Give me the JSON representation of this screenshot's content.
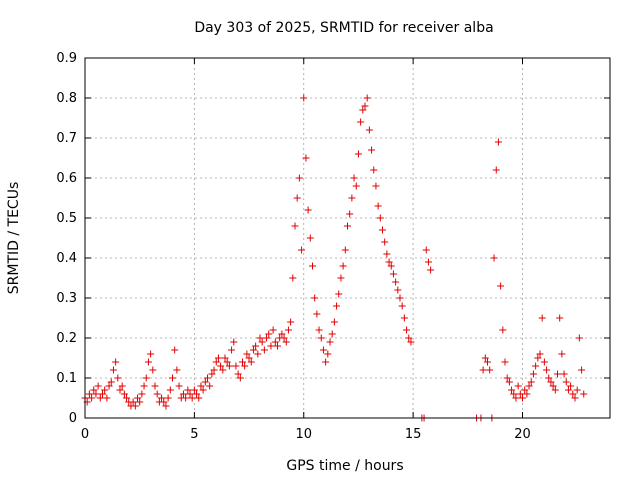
{
  "chart_data": {
    "type": "scatter",
    "title": "Day 303 of 2025, SRMTID for receiver alba",
    "xlabel": "GPS time / hours",
    "ylabel": "SRMTID / TECUs",
    "xlim": [
      0,
      24
    ],
    "ylim": [
      0,
      0.9
    ],
    "x_ticks": [
      {
        "value": 0,
        "label": "0"
      },
      {
        "value": 5,
        "label": "5"
      },
      {
        "value": 10,
        "label": "10"
      },
      {
        "value": 15,
        "label": "15"
      },
      {
        "value": 20,
        "label": "20"
      }
    ],
    "y_ticks": [
      {
        "value": 0,
        "label": "0"
      },
      {
        "value": 0.1,
        "label": "0.1"
      },
      {
        "value": 0.2,
        "label": "0.2"
      },
      {
        "value": 0.3,
        "label": "0.3"
      },
      {
        "value": 0.4,
        "label": "0.4"
      },
      {
        "value": 0.5,
        "label": "0.5"
      },
      {
        "value": 0.6,
        "label": "0.6"
      },
      {
        "value": 0.7,
        "label": "0.7"
      },
      {
        "value": 0.8,
        "label": "0.8"
      },
      {
        "value": 0.9,
        "label": "0.9"
      }
    ],
    "grid": true,
    "marker": "+",
    "color": "#e00000",
    "series": [
      {
        "name": "SRMTID",
        "points": [
          [
            0.0,
            0.05
          ],
          [
            0.1,
            0.04
          ],
          [
            0.2,
            0.06
          ],
          [
            0.3,
            0.05
          ],
          [
            0.4,
            0.07
          ],
          [
            0.5,
            0.06
          ],
          [
            0.6,
            0.08
          ],
          [
            0.7,
            0.05
          ],
          [
            0.8,
            0.06
          ],
          [
            0.9,
            0.07
          ],
          [
            1.0,
            0.05
          ],
          [
            1.1,
            0.08
          ],
          [
            1.2,
            0.09
          ],
          [
            1.3,
            0.12
          ],
          [
            1.4,
            0.14
          ],
          [
            1.5,
            0.1
          ],
          [
            1.6,
            0.07
          ],
          [
            1.7,
            0.08
          ],
          [
            1.8,
            0.06
          ],
          [
            1.9,
            0.05
          ],
          [
            2.0,
            0.04
          ],
          [
            2.1,
            0.03
          ],
          [
            2.2,
            0.04
          ],
          [
            2.3,
            0.03
          ],
          [
            2.4,
            0.05
          ],
          [
            2.5,
            0.04
          ],
          [
            2.6,
            0.06
          ],
          [
            2.7,
            0.08
          ],
          [
            2.8,
            0.1
          ],
          [
            2.9,
            0.14
          ],
          [
            3.0,
            0.16
          ],
          [
            3.1,
            0.12
          ],
          [
            3.2,
            0.08
          ],
          [
            3.3,
            0.06
          ],
          [
            3.4,
            0.04
          ],
          [
            3.5,
            0.05
          ],
          [
            3.6,
            0.04
          ],
          [
            3.7,
            0.03
          ],
          [
            3.8,
            0.05
          ],
          [
            3.9,
            0.07
          ],
          [
            4.0,
            0.1
          ],
          [
            4.1,
            0.17
          ],
          [
            4.2,
            0.12
          ],
          [
            4.3,
            0.08
          ],
          [
            4.4,
            0.05
          ],
          [
            4.5,
            0.06
          ],
          [
            4.6,
            0.05
          ],
          [
            4.7,
            0.07
          ],
          [
            4.8,
            0.06
          ],
          [
            4.9,
            0.05
          ],
          [
            5.0,
            0.07
          ],
          [
            5.1,
            0.06
          ],
          [
            5.2,
            0.05
          ],
          [
            5.3,
            0.08
          ],
          [
            5.4,
            0.07
          ],
          [
            5.5,
            0.09
          ],
          [
            5.6,
            0.1
          ],
          [
            5.7,
            0.08
          ],
          [
            5.8,
            0.11
          ],
          [
            5.9,
            0.12
          ],
          [
            6.0,
            0.14
          ],
          [
            6.1,
            0.15
          ],
          [
            6.2,
            0.13
          ],
          [
            6.3,
            0.12
          ],
          [
            6.4,
            0.15
          ],
          [
            6.5,
            0.14
          ],
          [
            6.6,
            0.13
          ],
          [
            6.7,
            0.17
          ],
          [
            6.8,
            0.19
          ],
          [
            6.9,
            0.13
          ],
          [
            7.0,
            0.11
          ],
          [
            7.1,
            0.1
          ],
          [
            7.2,
            0.14
          ],
          [
            7.3,
            0.13
          ],
          [
            7.4,
            0.16
          ],
          [
            7.5,
            0.15
          ],
          [
            7.6,
            0.14
          ],
          [
            7.7,
            0.17
          ],
          [
            7.8,
            0.18
          ],
          [
            7.9,
            0.16
          ],
          [
            8.0,
            0.2
          ],
          [
            8.1,
            0.19
          ],
          [
            8.2,
            0.17
          ],
          [
            8.3,
            0.2
          ],
          [
            8.4,
            0.21
          ],
          [
            8.5,
            0.18
          ],
          [
            8.6,
            0.22
          ],
          [
            8.7,
            0.19
          ],
          [
            8.8,
            0.18
          ],
          [
            8.9,
            0.2
          ],
          [
            9.0,
            0.21
          ],
          [
            9.1,
            0.2
          ],
          [
            9.2,
            0.19
          ],
          [
            9.3,
            0.22
          ],
          [
            9.4,
            0.24
          ],
          [
            9.5,
            0.35
          ],
          [
            9.6,
            0.48
          ],
          [
            9.7,
            0.55
          ],
          [
            9.8,
            0.6
          ],
          [
            9.9,
            0.42
          ],
          [
            10.0,
            0.8
          ],
          [
            10.1,
            0.65
          ],
          [
            10.2,
            0.52
          ],
          [
            10.3,
            0.45
          ],
          [
            10.4,
            0.38
          ],
          [
            10.5,
            0.3
          ],
          [
            10.6,
            0.26
          ],
          [
            10.7,
            0.22
          ],
          [
            10.8,
            0.2
          ],
          [
            10.9,
            0.17
          ],
          [
            11.0,
            0.14
          ],
          [
            11.1,
            0.16
          ],
          [
            11.2,
            0.19
          ],
          [
            11.3,
            0.21
          ],
          [
            11.4,
            0.24
          ],
          [
            11.5,
            0.28
          ],
          [
            11.6,
            0.31
          ],
          [
            11.7,
            0.35
          ],
          [
            11.8,
            0.38
          ],
          [
            11.9,
            0.42
          ],
          [
            12.0,
            0.48
          ],
          [
            12.1,
            0.51
          ],
          [
            12.2,
            0.55
          ],
          [
            12.3,
            0.6
          ],
          [
            12.4,
            0.58
          ],
          [
            12.5,
            0.66
          ],
          [
            12.6,
            0.74
          ],
          [
            12.7,
            0.77
          ],
          [
            12.8,
            0.78
          ],
          [
            12.9,
            0.8
          ],
          [
            13.0,
            0.72
          ],
          [
            13.1,
            0.67
          ],
          [
            13.2,
            0.62
          ],
          [
            13.3,
            0.58
          ],
          [
            13.4,
            0.53
          ],
          [
            13.5,
            0.5
          ],
          [
            13.6,
            0.47
          ],
          [
            13.7,
            0.44
          ],
          [
            13.8,
            0.41
          ],
          [
            13.9,
            0.39
          ],
          [
            14.0,
            0.38
          ],
          [
            14.1,
            0.36
          ],
          [
            14.2,
            0.34
          ],
          [
            14.3,
            0.32
          ],
          [
            14.4,
            0.3
          ],
          [
            14.5,
            0.28
          ],
          [
            14.6,
            0.25
          ],
          [
            14.7,
            0.22
          ],
          [
            14.8,
            0.2
          ],
          [
            14.9,
            0.19
          ],
          [
            15.4,
            0.0
          ],
          [
            15.5,
            0.0
          ],
          [
            15.6,
            0.42
          ],
          [
            15.7,
            0.39
          ],
          [
            15.8,
            0.37
          ],
          [
            17.9,
            0.0
          ],
          [
            18.1,
            0.0
          ],
          [
            18.2,
            0.12
          ],
          [
            18.3,
            0.15
          ],
          [
            18.4,
            0.14
          ],
          [
            18.5,
            0.12
          ],
          [
            18.6,
            0.0
          ],
          [
            18.7,
            0.4
          ],
          [
            18.8,
            0.62
          ],
          [
            18.9,
            0.69
          ],
          [
            19.0,
            0.33
          ],
          [
            19.1,
            0.22
          ],
          [
            19.2,
            0.14
          ],
          [
            19.3,
            0.1
          ],
          [
            19.4,
            0.09
          ],
          [
            19.5,
            0.07
          ],
          [
            19.6,
            0.06
          ],
          [
            19.7,
            0.05
          ],
          [
            19.8,
            0.08
          ],
          [
            19.9,
            0.06
          ],
          [
            20.0,
            0.05
          ],
          [
            20.1,
            0.07
          ],
          [
            20.2,
            0.06
          ],
          [
            20.3,
            0.08
          ],
          [
            20.4,
            0.09
          ],
          [
            20.5,
            0.11
          ],
          [
            20.6,
            0.13
          ],
          [
            20.7,
            0.15
          ],
          [
            20.8,
            0.16
          ],
          [
            20.9,
            0.25
          ],
          [
            21.0,
            0.14
          ],
          [
            21.1,
            0.12
          ],
          [
            21.2,
            0.1
          ],
          [
            21.3,
            0.09
          ],
          [
            21.4,
            0.08
          ],
          [
            21.5,
            0.07
          ],
          [
            21.6,
            0.11
          ],
          [
            21.7,
            0.25
          ],
          [
            21.8,
            0.16
          ],
          [
            21.9,
            0.11
          ],
          [
            22.0,
            0.09
          ],
          [
            22.1,
            0.07
          ],
          [
            22.2,
            0.08
          ],
          [
            22.3,
            0.06
          ],
          [
            22.4,
            0.05
          ],
          [
            22.5,
            0.07
          ],
          [
            22.6,
            0.2
          ],
          [
            22.7,
            0.12
          ],
          [
            22.8,
            0.06
          ]
        ]
      }
    ]
  }
}
